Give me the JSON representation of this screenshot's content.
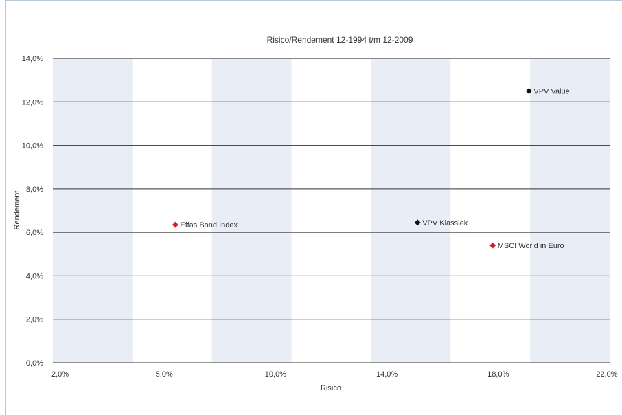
{
  "chart_data": {
    "type": "scatter",
    "title": "Risico/Rendement 12-1994 t/m 12-2009",
    "xlabel": "Risico",
    "ylabel": "Rendement",
    "x_ticks": [
      "2,0%",
      "5,0%",
      "10,0%",
      "14,0%",
      "18,0%",
      "22,0%"
    ],
    "y_ticks": [
      "0,0%",
      "2,0%",
      "4,0%",
      "6,0%",
      "8,0%",
      "10,0%",
      "12,0%",
      "14,0%"
    ],
    "ylim": [
      0,
      14
    ],
    "grid": "horizontal lines with alternating vertical bands",
    "points": [
      {
        "label": "Effas Bond Index",
        "x": 5.5,
        "y": 6.35,
        "color": "#d0202a"
      },
      {
        "label": "VPV Klassiek",
        "x": 15.1,
        "y": 6.45,
        "color": "#111111"
      },
      {
        "label": "MSCI World in Euro",
        "x": 17.8,
        "y": 5.4,
        "color": "#d0202a"
      },
      {
        "label": "VPV Value",
        "x": 19.1,
        "y": 12.5,
        "color": "#111111"
      }
    ]
  },
  "colors": {
    "frame": "#b7c7da",
    "band": "#e9eef6",
    "gridline": "#333333"
  }
}
